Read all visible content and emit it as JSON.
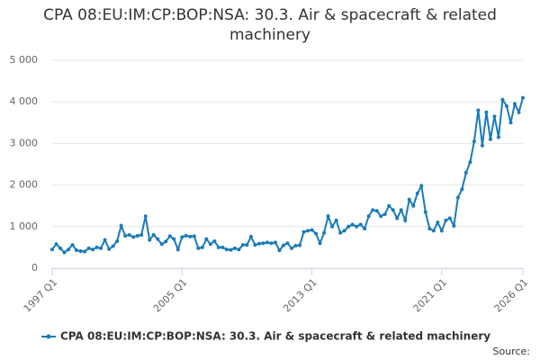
{
  "chart_data": {
    "type": "line",
    "title": "CPA 08:EU:IM:CP:BOP:NSA: 30.3. Air & spacecraft & related machinery",
    "categories": [
      "1997 Q1",
      null,
      null,
      null,
      null,
      null,
      null,
      null,
      null,
      null,
      null,
      null,
      null,
      null,
      null,
      null,
      null,
      null,
      null,
      null,
      null,
      null,
      null,
      null,
      null,
      null,
      null,
      null,
      null,
      null,
      null,
      null,
      "2005 Q1",
      null,
      null,
      null,
      null,
      null,
      null,
      null,
      null,
      null,
      null,
      null,
      null,
      null,
      null,
      null,
      null,
      null,
      null,
      null,
      null,
      null,
      null,
      null,
      null,
      null,
      null,
      null,
      null,
      null,
      null,
      null,
      "2013 Q1",
      null,
      null,
      null,
      null,
      null,
      null,
      null,
      null,
      null,
      null,
      null,
      null,
      null,
      null,
      null,
      null,
      null,
      null,
      null,
      null,
      null,
      null,
      null,
      null,
      null,
      null,
      null,
      null,
      null,
      null,
      null,
      "2021 Q1",
      null,
      null,
      null,
      null,
      null,
      null,
      null,
      null,
      null,
      null,
      null,
      null,
      null,
      null,
      null,
      null,
      null,
      null,
      null,
      "2026 Q1"
    ],
    "series": [
      {
        "name": "CPA 08:EU:IM:CP:BOP:NSA: 30.3. Air & spacecraft & related machinery",
        "color": "#1a7ab8",
        "values": [
          450,
          580,
          480,
          380,
          450,
          560,
          430,
          410,
          400,
          480,
          450,
          500,
          480,
          680,
          460,
          530,
          650,
          1020,
          780,
          800,
          750,
          780,
          800,
          1250,
          680,
          800,
          700,
          580,
          640,
          770,
          700,
          450,
          750,
          780,
          760,
          770,
          480,
          500,
          700,
          580,
          650,
          500,
          500,
          450,
          440,
          480,
          450,
          560,
          560,
          760,
          560,
          590,
          600,
          620,
          600,
          620,
          430,
          550,
          600,
          480,
          540,
          550,
          870,
          900,
          920,
          830,
          600,
          850,
          1250,
          1000,
          1150,
          850,
          900,
          1000,
          1050,
          1000,
          1050,
          950,
          1250,
          1400,
          1380,
          1250,
          1300,
          1500,
          1400,
          1200,
          1400,
          1150,
          1650,
          1500,
          1800,
          1980,
          1350,
          950,
          900,
          1100,
          900,
          1150,
          1200,
          1020,
          1700,
          1900,
          2300,
          2550,
          3050,
          3800,
          2950,
          3750,
          3100,
          3650,
          3150,
          4050,
          3900,
          3500,
          3950,
          3750,
          4100
        ]
      }
    ],
    "ylim": [
      0,
      5000
    ],
    "yticks": [
      0,
      {
        "value": 1000,
        "label": "1 000"
      },
      {
        "value": 2000,
        "label": "2 000"
      },
      {
        "value": 3000,
        "label": "3 000"
      },
      {
        "value": 4000,
        "label": "4 000"
      },
      {
        "value": 5000,
        "label": "5 000"
      }
    ],
    "grid": true,
    "legend": "bottom",
    "source": "Source:"
  }
}
